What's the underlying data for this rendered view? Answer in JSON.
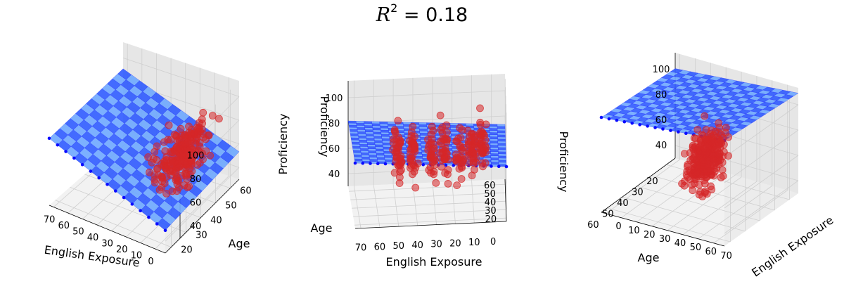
{
  "title": {
    "symbol": "R",
    "exponent": "2",
    "rest": " = 0.18"
  },
  "colors": {
    "plane": "#2f5bff",
    "plane_light": "#6ea8ff",
    "plane_edge": "#0a0aff",
    "points": "#d62728",
    "pane": "#f2f2f2",
    "grid": "#cfcfcf"
  },
  "chart_data": [
    {
      "type": "scatter3d",
      "panel": "left",
      "x": {
        "label": "English Exposure",
        "ticks": [
          "70",
          "60",
          "50",
          "40",
          "30",
          "20",
          "10",
          "0"
        ],
        "range": [
          75,
          0
        ]
      },
      "y": {
        "label": "Age",
        "ticks": [
          "20",
          "30",
          "40",
          "50",
          "60"
        ],
        "range": [
          18,
          62
        ]
      },
      "z": {
        "label": "Proficiency",
        "ticks": [
          "40",
          "60",
          "80",
          "100"
        ],
        "range": [
          30,
          115
        ]
      },
      "fit_plane": {
        "intercept": 60.8,
        "slope_exposure": 0.53,
        "slope_age": 0.02
      },
      "points_summary": "red scatter of English Exposure, Age, Proficiency; bulk at low exposure (0-30), age 20-60, proficiency 40-100"
    },
    {
      "type": "scatter3d",
      "panel": "middle",
      "x": {
        "label": "English Exposure",
        "ticks": [
          "70",
          "60",
          "50",
          "40",
          "30",
          "20",
          "10",
          "0"
        ],
        "range": [
          75,
          0
        ]
      },
      "y": {
        "label": "Age",
        "ticks": [
          "20",
          "30",
          "40",
          "50",
          "60"
        ],
        "range": [
          18,
          62
        ]
      },
      "z": {
        "label": "Proficiency",
        "ticks": [
          "40",
          "60",
          "80",
          "100"
        ],
        "range": [
          30,
          115
        ]
      },
      "fit_plane": {
        "intercept": 60.8,
        "slope_exposure": 0.53,
        "slope_age": 0.02
      }
    },
    {
      "type": "scatter3d",
      "panel": "right",
      "x": {
        "label": "English Exposure",
        "ticks": [
          "0",
          "10",
          "20",
          "30",
          "40",
          "50",
          "60",
          "70"
        ],
        "range": [
          0,
          75
        ]
      },
      "y": {
        "label": "Age",
        "ticks": [
          "60",
          "50",
          "40",
          "30",
          "20"
        ],
        "range": [
          62,
          18
        ]
      },
      "z": {
        "label": "Proficiency",
        "ticks": [
          "40",
          "60",
          "80",
          "100"
        ],
        "range": [
          30,
          115
        ]
      },
      "fit_plane": {
        "intercept": 60.8,
        "slope_exposure": 0.53,
        "slope_age": 0.02
      }
    }
  ]
}
